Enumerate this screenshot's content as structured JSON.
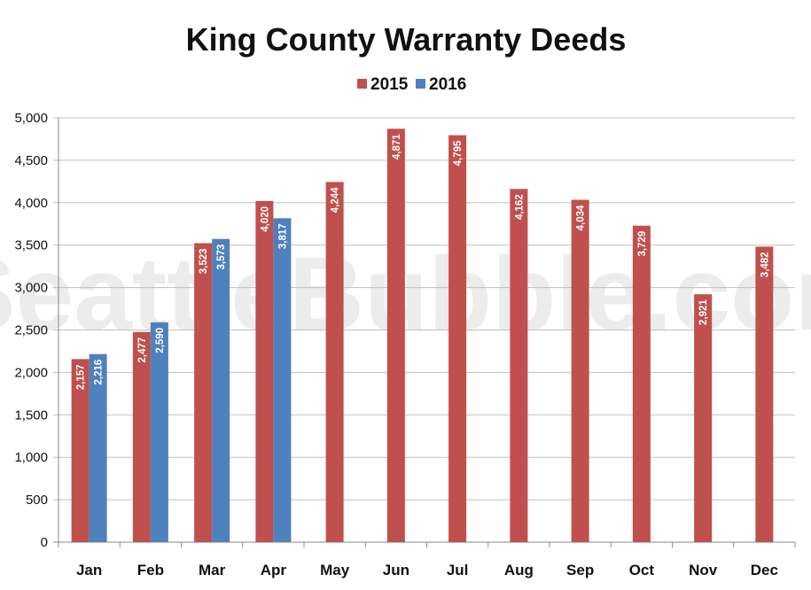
{
  "chart_data": {
    "type": "bar",
    "title": "King County Warranty Deeds",
    "categories": [
      "Jan",
      "Feb",
      "Mar",
      "Apr",
      "May",
      "Jun",
      "Jul",
      "Aug",
      "Sep",
      "Oct",
      "Nov",
      "Dec"
    ],
    "series": [
      {
        "name": "2015",
        "color": "#c0504d",
        "values": [
          2157,
          2477,
          3523,
          4020,
          4244,
          4871,
          4795,
          4162,
          4034,
          3729,
          2921,
          3482
        ],
        "labels": [
          "2,157",
          "2,477",
          "3,523",
          "4,020",
          "4,244",
          "4,871",
          "4,795",
          "4,162",
          "4,034",
          "3,729",
          "2,921",
          "3,482"
        ]
      },
      {
        "name": "2016",
        "color": "#4f81bd",
        "values": [
          2216,
          2590,
          3573,
          3817,
          null,
          null,
          null,
          null,
          null,
          null,
          null,
          null
        ],
        "labels": [
          "2,216",
          "2,590",
          "3,573",
          "3,817",
          null,
          null,
          null,
          null,
          null,
          null,
          null,
          null
        ]
      }
    ],
    "ylim": [
      0,
      5000
    ],
    "yticks": [
      0,
      500,
      1000,
      1500,
      2000,
      2500,
      3000,
      3500,
      4000,
      4500,
      5000
    ],
    "ytick_labels": [
      "0",
      "500",
      "1,000",
      "1,500",
      "2,000",
      "2,500",
      "3,000",
      "3,500",
      "4,000",
      "4,500",
      "5,000"
    ],
    "xlabel": "",
    "ylabel": "",
    "grid": true,
    "legend": "top-center",
    "watermark": "SeattleBubble.com"
  }
}
